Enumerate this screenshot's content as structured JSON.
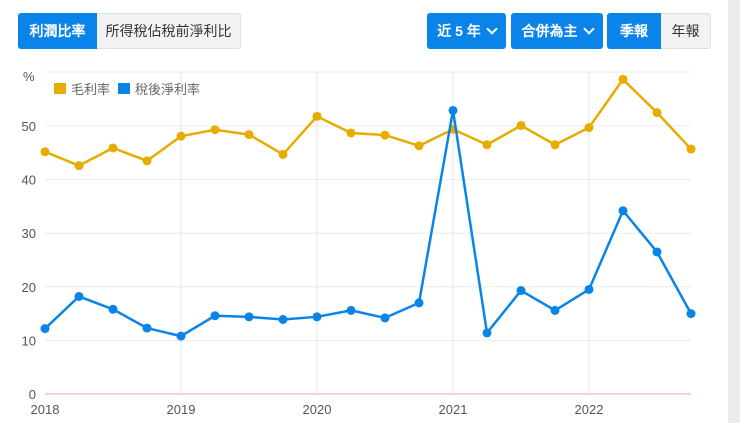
{
  "tabs": {
    "left": [
      {
        "label": "利潤比率",
        "active": true
      },
      {
        "label": "所得稅佔稅前淨利比",
        "active": false
      }
    ],
    "period_dropdown": "近 5 年",
    "consolidation_dropdown": "合併為主",
    "frequency": [
      {
        "label": "季報",
        "active": true
      },
      {
        "label": "年報",
        "active": false
      }
    ]
  },
  "colors": {
    "accent": "#0a84e8",
    "gross_margin": "#e6ac00",
    "net_margin": "#0a84e8",
    "zero_line": "#f2c4c4",
    "grid": "#ebebeb"
  },
  "chart_data": {
    "type": "line",
    "title": "",
    "xlabel": "",
    "ylabel": "%",
    "ylim": [
      0,
      60
    ],
    "yticks": [
      0,
      10,
      20,
      30,
      40,
      50
    ],
    "xticks": [
      "2018",
      "2019",
      "2020",
      "2021",
      "2022"
    ],
    "grid": true,
    "legend_position": "top-left",
    "x": [
      "2018Q1",
      "2018Q2",
      "2018Q3",
      "2018Q4",
      "2019Q1",
      "2019Q2",
      "2019Q3",
      "2019Q4",
      "2020Q1",
      "2020Q2",
      "2020Q3",
      "2020Q4",
      "2021Q1",
      "2021Q2",
      "2021Q3",
      "2021Q4",
      "2022Q1",
      "2022Q2",
      "2022Q3",
      "2022Q4"
    ],
    "series": [
      {
        "name": "毛利率",
        "color": "#e6ac00",
        "values": [
          45.2,
          42.6,
          45.9,
          43.5,
          48.1,
          49.3,
          48.4,
          44.7,
          51.8,
          48.7,
          48.3,
          46.3,
          49.4,
          46.5,
          50.1,
          46.5,
          49.7,
          58.7,
          52.5,
          45.7
        ]
      },
      {
        "name": "稅後淨利率",
        "color": "#0a84e8",
        "values": [
          12.2,
          18.2,
          15.8,
          12.3,
          10.8,
          14.6,
          14.4,
          13.9,
          14.4,
          15.6,
          14.2,
          17.0,
          52.9,
          11.4,
          19.3,
          15.6,
          19.5,
          34.2,
          26.5,
          15.0
        ]
      }
    ]
  }
}
